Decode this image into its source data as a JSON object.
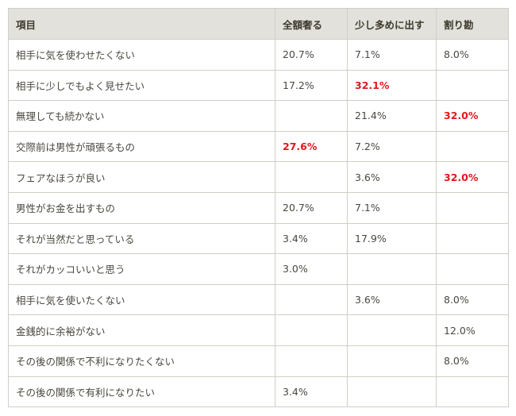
{
  "table": {
    "headers": [
      "項目",
      "全額奢る",
      "少し多めに出す",
      "割り勘"
    ],
    "highlight_color": "#e3171d",
    "rows": [
      {
        "item": "相手に気を使わせたくない",
        "cells": [
          {
            "v": "20.7%"
          },
          {
            "v": "7.1%"
          },
          {
            "v": "8.0%"
          }
        ]
      },
      {
        "item": "相手に少しでもよく見せたい",
        "cells": [
          {
            "v": "17.2%"
          },
          {
            "v": "32.1%",
            "hi": true
          },
          {
            "v": ""
          }
        ]
      },
      {
        "item": "無理しても続かない",
        "cells": [
          {
            "v": ""
          },
          {
            "v": "21.4%"
          },
          {
            "v": "32.0%",
            "hi": true
          }
        ]
      },
      {
        "item": "交際前は男性が頑張るもの",
        "cells": [
          {
            "v": "27.6%",
            "hi": true
          },
          {
            "v": "7.2%"
          },
          {
            "v": ""
          }
        ]
      },
      {
        "item": "フェアなほうが良い",
        "cells": [
          {
            "v": ""
          },
          {
            "v": "3.6%"
          },
          {
            "v": "32.0%",
            "hi": true
          }
        ]
      },
      {
        "item": "男性がお金を出すもの",
        "cells": [
          {
            "v": "20.7%"
          },
          {
            "v": "7.1%"
          },
          {
            "v": ""
          }
        ]
      },
      {
        "item": "それが当然だと思っている",
        "cells": [
          {
            "v": "3.4%"
          },
          {
            "v": "17.9%"
          },
          {
            "v": ""
          }
        ]
      },
      {
        "item": "それがカッコいいと思う",
        "cells": [
          {
            "v": "3.0%"
          },
          {
            "v": ""
          },
          {
            "v": ""
          }
        ]
      },
      {
        "item": "相手に気を使いたくない",
        "cells": [
          {
            "v": ""
          },
          {
            "v": "3.6%"
          },
          {
            "v": "8.0%"
          }
        ]
      },
      {
        "item": "金銭的に余裕がない",
        "cells": [
          {
            "v": ""
          },
          {
            "v": ""
          },
          {
            "v": "12.0%"
          }
        ]
      },
      {
        "item": "その後の関係で不利になりたくない",
        "cells": [
          {
            "v": ""
          },
          {
            "v": ""
          },
          {
            "v": "8.0%"
          }
        ]
      },
      {
        "item": "その後の関係で有利になりたい",
        "cells": [
          {
            "v": "3.4%"
          },
          {
            "v": ""
          },
          {
            "v": ""
          }
        ]
      }
    ]
  }
}
